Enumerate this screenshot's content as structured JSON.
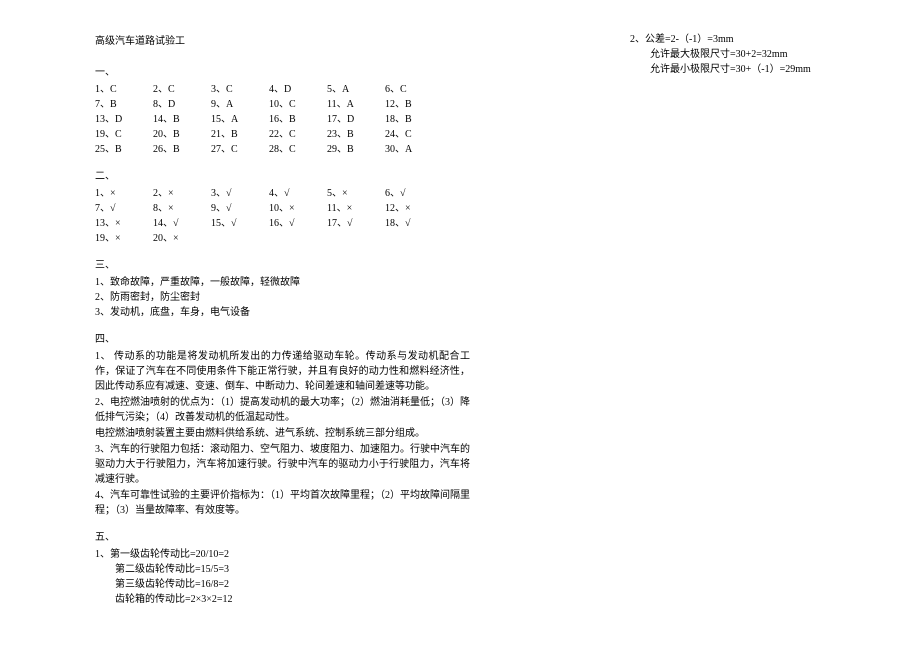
{
  "title": "高级汽车道路试验工",
  "sections": {
    "s1": {
      "label": "一、"
    },
    "s2": {
      "label": "二、"
    },
    "s3": {
      "label": "三、"
    },
    "s4": {
      "label": "四、"
    },
    "s5": {
      "label": "五、"
    }
  },
  "mc": [
    "1、C",
    "2、C",
    "3、C",
    "4、D",
    "5、A",
    "6、C",
    "7、B",
    "8、D",
    "9、A",
    "10、C",
    "11、A",
    "12、B",
    "13、D",
    "14、B",
    "15、A",
    "16、B",
    "17、D",
    "18、B",
    "19、C",
    "20、B",
    "21、B",
    "22、C",
    "23、B",
    "24、C",
    "25、B",
    "26、B",
    "27、C",
    "28、C",
    "29、B",
    "30、A"
  ],
  "tf": [
    "1、×",
    "2、×",
    "3、√",
    "4、√",
    "5、×",
    "6、√",
    "7、√",
    "8、×",
    "9、√",
    "10、×",
    "11、×",
    "12、×",
    "13、×",
    "14、√",
    "15、√",
    "16、√",
    "17、√",
    "18、√",
    "19、×",
    "20、×"
  ],
  "fill": {
    "f1": "1、致命故障，严重故障，一般故障，轻微故障",
    "f2": "2、防雨密封，防尘密封",
    "f3": "3、发动机，底盘，车身，电气设备"
  },
  "essay": {
    "e1": "1、 传动系的功能是将发动机所发出的力传递给驱动车轮。传动系与发动机配合工作，保证了汽车在不同使用条件下能正常行驶，并且有良好的动力性和燃料经济性，因此传动系应有减速、变速、倒车、中断动力、轮间差速和轴间差速等功能。",
    "e2a": "2、电控燃油喷射的优点为：（1）提高发动机的最大功率；（2）燃油消耗量低；（3）降低排气污染；（4）改善发动机的低温起动性。",
    "e2b": "电控燃油喷射装置主要由燃料供给系统、进气系统、控制系统三部分组成。",
    "e3": "3、汽车的行驶阻力包括：滚动阻力、空气阻力、坡度阻力、加速阻力。行驶中汽车的驱动力大于行驶阻力，汽车将加速行驶。行驶中汽车的驱动力小于行驶阻力，汽车将减速行驶。",
    "e4": "4、汽车可靠性试验的主要评价指标为：（1）平均首次故障里程；（2）平均故障间隔里程；（3）当量故障率、有效度等。"
  },
  "calc1": {
    "c1": "1、第一级齿轮传动比=20/10=2",
    "c2": "第二级齿轮传动比=15/5=3",
    "c3": "第三级齿轮传动比=16/8=2",
    "c4": "齿轮箱的传动比=2×3×2=12"
  },
  "calc2": {
    "c1": "2、公差=2-（-1）=3mm",
    "c2": "允许最大极限尺寸=30+2=32mm",
    "c3": "允许最小极限尺寸=30+（-1）=29mm"
  }
}
